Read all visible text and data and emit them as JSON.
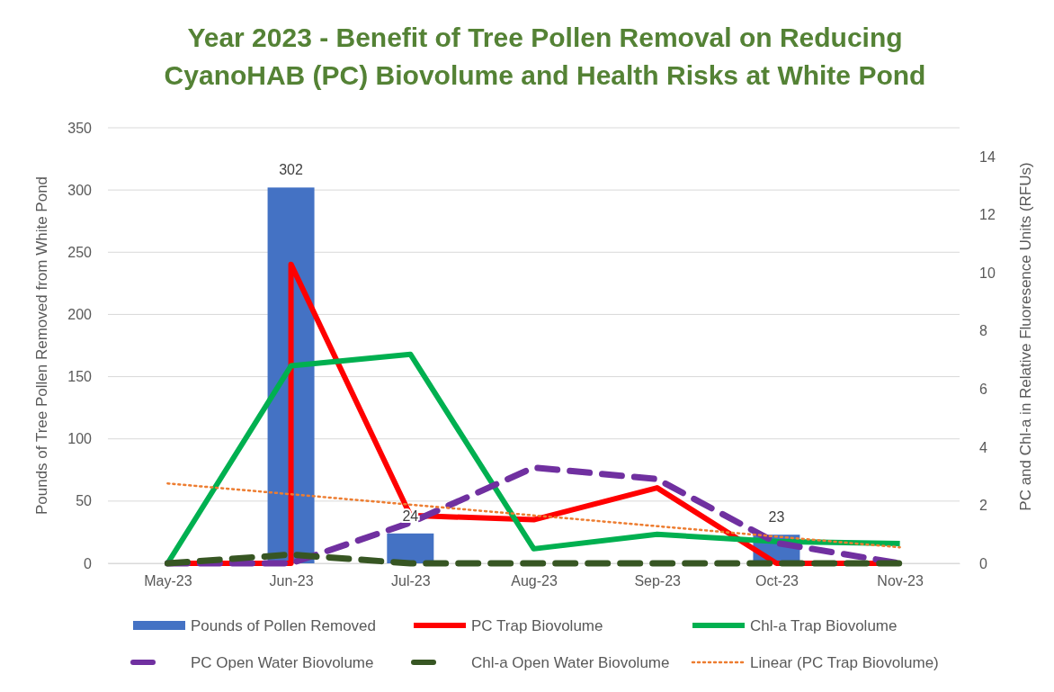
{
  "chart_data": {
    "type": "line",
    "title": "Year 2023 - Benefit of Tree Pollen Removal on Reducing CyanoHAB (PC) Biovolume and Health Risks at White Pond",
    "ylabel": "Pounds of Tree Pollen Removed from White Pond",
    "y2label": "PC and Chl-a in Relative Fluoresence Units (RFUs)",
    "xlim": [
      "2023-04-16",
      "2023-11-16"
    ],
    "xticks": [
      {
        "value": "2023-05",
        "label": "May-23"
      },
      {
        "value": "2023-06",
        "label": "Jun-23"
      },
      {
        "value": "2023-07",
        "label": "Jul-23"
      },
      {
        "value": "2023-08",
        "label": "Aug-23"
      },
      {
        "value": "2023-09",
        "label": "Sep-23"
      },
      {
        "value": "2023-10",
        "label": "Oct-23"
      },
      {
        "value": "2023-11",
        "label": "Nov-23"
      }
    ],
    "ylim": [
      0,
      350
    ],
    "yticks": [
      0,
      50,
      100,
      150,
      200,
      250,
      300,
      350
    ],
    "y2lim": [
      0,
      15
    ],
    "y2ticks": [
      0,
      2,
      4,
      6,
      8,
      10,
      12,
      14
    ],
    "grid": "y",
    "legend": "bottom",
    "series": [
      {
        "name": "Pounds of Pollen Removed",
        "type": "bar",
        "color": "#4472c4",
        "x": [
          "2023-06",
          "2023-07",
          "2023-10"
        ],
        "values": [
          302,
          24,
          23
        ],
        "value_labels": [
          "302",
          "24",
          "23"
        ]
      },
      {
        "name": "PC Trap Biovolume",
        "axis": "y2",
        "color": "#ff0000",
        "line_style": "solid",
        "x": [
          "2023-05",
          "2023-06",
          "2023-06",
          "2023-07",
          "2023-08",
          "2023-09",
          "2023-10",
          "2023-11"
        ],
        "values": [
          0,
          0,
          10.3,
          1.65,
          1.5,
          2.6,
          0,
          0
        ]
      },
      {
        "name": "Chl-a Trap Biovolume",
        "axis": "y2",
        "color": "#00b050",
        "line_style": "solid",
        "x": [
          "2023-05",
          "2023-06",
          "2023-07",
          "2023-08",
          "2023-09",
          "2023-10",
          "2023-11"
        ],
        "values": [
          0,
          6.8,
          7.2,
          0.5,
          1.0,
          0.75,
          0.68
        ]
      },
      {
        "name": "PC Open Water Biovolume",
        "axis": "y2",
        "color": "#7030a0",
        "line_style": "dashed",
        "x": [
          "2023-05",
          "2023-06",
          "2023-07",
          "2023-08",
          "2023-09",
          "2023-10",
          "2023-11"
        ],
        "values": [
          0,
          0,
          1.4,
          3.3,
          2.9,
          0.7,
          0
        ]
      },
      {
        "name": "Chl-a Open Water Biovolume",
        "axis": "y2",
        "color": "#375623",
        "line_style": "dashed",
        "x": [
          "2023-05",
          "2023-06",
          "2023-07",
          "2023-08",
          "2023-09",
          "2023-10",
          "2023-11"
        ],
        "values": [
          0,
          0.3,
          0,
          0,
          0,
          0,
          0
        ]
      },
      {
        "name": "Linear (PC Trap Biovolume)",
        "axis": "y2",
        "color": "#ed7d31",
        "line_style": "dotted",
        "x": [
          "2023-05",
          "2023-11"
        ],
        "values": [
          2.75,
          0.55
        ]
      }
    ]
  }
}
